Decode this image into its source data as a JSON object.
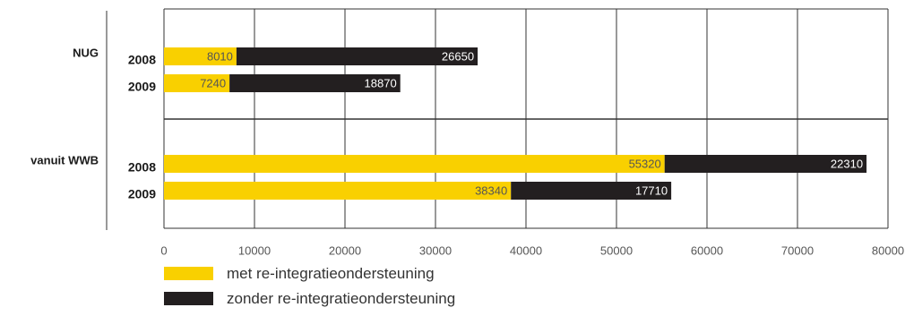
{
  "chart_data": {
    "type": "bar",
    "orientation": "horizontal",
    "stacked": true,
    "xlim": [
      0,
      80000
    ],
    "x_ticks": [
      0,
      10000,
      20000,
      30000,
      40000,
      50000,
      60000,
      70000,
      80000
    ],
    "x_tick_labels": [
      "0",
      "10000",
      "20000",
      "30000",
      "40000",
      "50000",
      "60000",
      "70000",
      "80000"
    ],
    "grid": true,
    "legend_position": "bottom-left",
    "colors": {
      "met": "#f9d000",
      "zonder": "#231f20",
      "label_on_met": "#555555",
      "label_on_zonder": "#ffffff",
      "grid": "#333333"
    },
    "groups": [
      {
        "name": "NUG",
        "rows": [
          {
            "year": "2008",
            "values": [
              8010,
              26650
            ]
          },
          {
            "year": "2009",
            "values": [
              7240,
              18870
            ]
          }
        ]
      },
      {
        "name": "vanuit WWB",
        "rows": [
          {
            "year": "2008",
            "values": [
              55320,
              22310
            ]
          },
          {
            "year": "2009",
            "values": [
              38340,
              17710
            ]
          }
        ]
      }
    ],
    "series": [
      {
        "name": "met re-integratieondersteuning"
      },
      {
        "name": "zonder re-integratieondersteuning"
      }
    ]
  }
}
